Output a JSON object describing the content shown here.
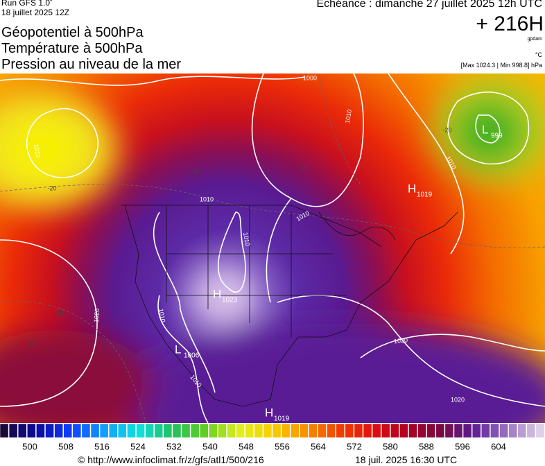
{
  "header": {
    "run": "Run GFS 1.0˚",
    "run_date": "18 juillet 2025 12Z",
    "titles": [
      "Géopotentiel à 500hPa",
      "Température à 500hPa",
      "Pression au niveau de la mer"
    ],
    "valid_time": "Echéance : dimanche 27 juillet 2025 12h UTC",
    "lead": "+ 216H",
    "unit_geo": "gpdam",
    "unit_temp": "°C",
    "pressure_range": "[Max 1024.3 | Min 998.8] hPa"
  },
  "map": {
    "isobar_labels": [
      "1000",
      "1010",
      "1010",
      "1010",
      "1010",
      "1010",
      "1010",
      "1010",
      "1020",
      "1020",
      "1020",
      "1010"
    ],
    "temperature_labels": [
      "-20",
      "-20",
      "-10",
      "-10",
      "-20",
      "-20"
    ],
    "pressure_centers": [
      {
        "letter": "H",
        "value": "1019"
      },
      {
        "letter": "L",
        "value": "999"
      },
      {
        "letter": "H",
        "value": "1023"
      },
      {
        "letter": "L",
        "value": "1006"
      },
      {
        "letter": "H",
        "value": "1019"
      }
    ]
  },
  "colorbar": {
    "ticks": [
      "500",
      "508",
      "516",
      "524",
      "532",
      "540",
      "548",
      "556",
      "564",
      "572",
      "580",
      "588",
      "596",
      "604"
    ]
  },
  "footer": {
    "source": "© http://www.infoclimat.fr/z/gfs/atl1/500/216",
    "generated": "18 juil. 2025 16:30 UTC"
  }
}
